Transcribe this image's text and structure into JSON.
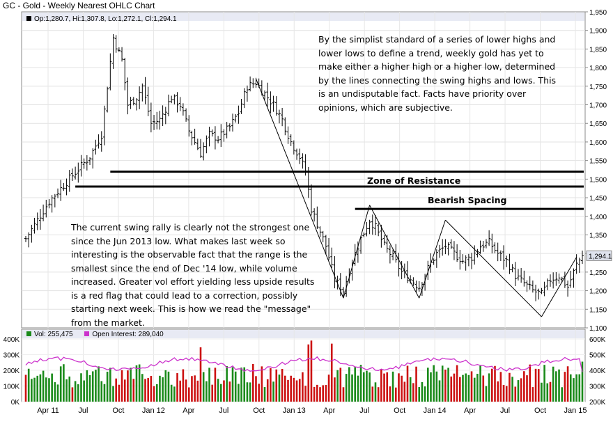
{
  "title": "GC - Gold - Weekly Nearest OHLC Chart",
  "price_info": "Op:1,280.7, Hi:1,307.8, Lo:1,272.1, Cl:1,294.1",
  "last_price_label": "1,294.1",
  "volume_info": {
    "vol_label": "Vol: 255,475",
    "oi_label": "Open Interest: 289,040"
  },
  "annotations": {
    "top_right": "By the simplist standard of a series of lower highs and lower lows to define a trend, weekly gold has yet to make either a higher high or a higher low, determined by the lines connecting the swing highs and lows.  This is an undisputable fact.  Facts have priority over opinions, which are subjective.",
    "bottom_left": "The current swing rally is clearly not the strongest one since the Jun 2013 low.  What makes last week so interesting is the observable fact that the range is the smallest since the end of Dec '14 low, while volume increased.  Greater vol effort yielding less upside results is a red flag that could lead to a correction, possibly starting next week.  This is how we read the \"message\" from the market.",
    "zone_of_resistance": "Zone of Resistance",
    "bearish_spacing": "Bearish Spacing"
  },
  "colors": {
    "up_bar": "#000000",
    "volume_up": "#1a8a1a",
    "volume_down": "#cc1111",
    "open_interest": "#cc33cc",
    "last_price_box": "#dfe3ee"
  },
  "chart_data": [
    {
      "type": "ohlc",
      "title": "GC - Gold - Weekly Nearest OHLC Chart",
      "x_ticks": [
        "Apr 11",
        "Jul",
        "Oct",
        "Jan 12",
        "Apr",
        "Jul",
        "Oct",
        "Jan 13",
        "Apr",
        "Jul",
        "Oct",
        "Jan 14",
        "Apr",
        "Jul",
        "Oct",
        "Jan 15"
      ],
      "y_ticks": [
        "1,100",
        "1,150",
        "1,200",
        "1,250",
        "1,300",
        "1,350",
        "1,400",
        "1,450",
        "1,500",
        "1,550",
        "1,600",
        "1,650",
        "1,700",
        "1,750",
        "1,800",
        "1,850",
        "1,900",
        "1,950"
      ],
      "ylim": [
        1100,
        1950
      ],
      "last": {
        "open": 1280.7,
        "high": 1307.8,
        "low": 1272.1,
        "close": 1294.1
      },
      "approx_close_path": [
        [
          0,
          1340
        ],
        [
          8,
          1440
        ],
        [
          16,
          1510
        ],
        [
          22,
          1560
        ],
        [
          26,
          1620
        ],
        [
          28,
          1750
        ],
        [
          30,
          1880
        ],
        [
          33,
          1820
        ],
        [
          35,
          1700
        ],
        [
          38,
          1720
        ],
        [
          40,
          1750
        ],
        [
          43,
          1650
        ],
        [
          46,
          1660
        ],
        [
          50,
          1720
        ],
        [
          53,
          1700
        ],
        [
          56,
          1630
        ],
        [
          60,
          1570
        ],
        [
          63,
          1620
        ],
        [
          66,
          1610
        ],
        [
          70,
          1640
        ],
        [
          73,
          1680
        ],
        [
          76,
          1750
        ],
        [
          79,
          1760
        ],
        [
          82,
          1730
        ],
        [
          85,
          1700
        ],
        [
          88,
          1660
        ],
        [
          91,
          1600
        ],
        [
          94,
          1560
        ],
        [
          96,
          1520
        ],
        [
          98,
          1420
        ],
        [
          100,
          1380
        ],
        [
          103,
          1320
        ],
        [
          106,
          1230
        ],
        [
          109,
          1200
        ],
        [
          112,
          1280
        ],
        [
          115,
          1340
        ],
        [
          118,
          1390
        ],
        [
          120,
          1370
        ],
        [
          123,
          1320
        ],
        [
          126,
          1290
        ],
        [
          129,
          1250
        ],
        [
          132,
          1230
        ],
        [
          135,
          1210
        ],
        [
          138,
          1260
        ],
        [
          141,
          1300
        ],
        [
          144,
          1320
        ],
        [
          147,
          1300
        ],
        [
          150,
          1280
        ],
        [
          153,
          1290
        ],
        [
          156,
          1320
        ],
        [
          159,
          1330
        ],
        [
          162,
          1300
        ],
        [
          165,
          1280
        ],
        [
          168,
          1240
        ],
        [
          171,
          1220
        ],
        [
          174,
          1200
        ],
        [
          177,
          1190
        ],
        [
          180,
          1230
        ],
        [
          183,
          1240
        ],
        [
          186,
          1210
        ],
        [
          189,
          1270
        ],
        [
          191,
          1294.1
        ]
      ],
      "trend_lines": [
        {
          "from": [
            79,
            1770
          ],
          "to": [
            109,
            1180
          ]
        },
        {
          "from": [
            109,
            1180
          ],
          "to": [
            118,
            1430
          ]
        },
        {
          "from": [
            118,
            1430
          ],
          "to": [
            135,
            1180
          ]
        },
        {
          "from": [
            135,
            1180
          ],
          "to": [
            144,
            1390
          ]
        },
        {
          "from": [
            144,
            1390
          ],
          "to": [
            177,
            1130
          ]
        },
        {
          "from": [
            177,
            1130
          ],
          "to": [
            189,
            1290
          ]
        }
      ],
      "horizontal_lines": [
        {
          "value": 1520,
          "from": 29
        },
        {
          "value": 1480,
          "from": 17
        },
        {
          "value": 1420,
          "from": 113
        }
      ]
    },
    {
      "type": "bar",
      "series": [
        {
          "name": "Vol",
          "last": 255475
        },
        {
          "name": "Open Interest",
          "last": 289040
        }
      ],
      "y_ticks_left": [
        "0K",
        "100K",
        "200K",
        "300K",
        "400K"
      ],
      "y_ticks_right": [
        "200K",
        "300K",
        "400K",
        "500K",
        "600K"
      ],
      "ylim_left": [
        0,
        400000
      ],
      "ylim_right": [
        200000,
        600000
      ]
    }
  ]
}
